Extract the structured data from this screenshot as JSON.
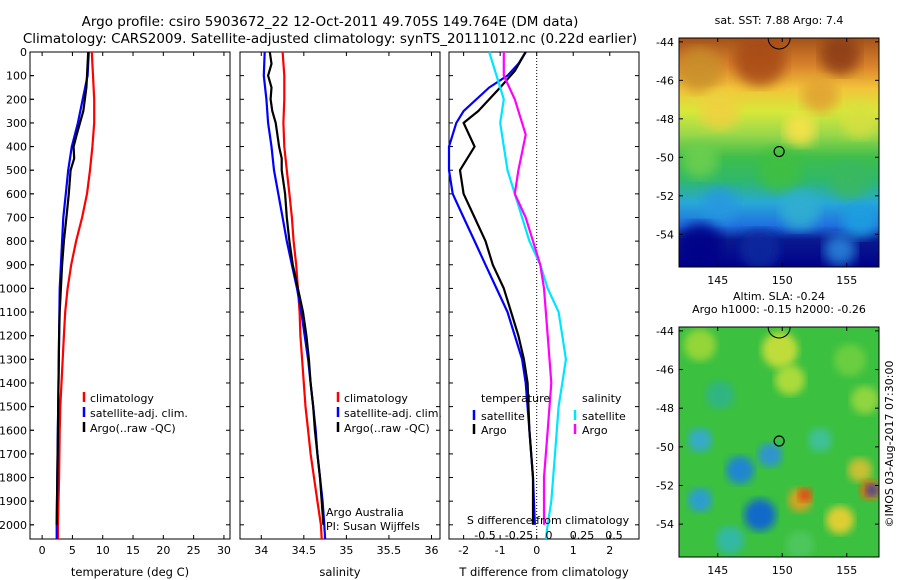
{
  "title_line1": "Argo profile: csiro 5903672_22 12-Oct-2011 49.705S 149.764E (DM data)",
  "title_line2": "Climatology: CARS2009. Satellite-adjusted climatology: synTS_20111012.nc (0.22d earlier)",
  "watermark": "©IMOS 03-Aug-2017 07:30:00",
  "colors": {
    "clim": "#ff0000",
    "sat": "#0000ff",
    "argo": "#000000",
    "sat_sal": "#00e5ff",
    "argo_sal": "#ff00ff"
  },
  "chart_data": [
    {
      "type": "line",
      "id": "temperature",
      "xlabel": "temperature (deg C)",
      "xlim": [
        -2,
        31
      ],
      "ylim": [
        0,
        2060
      ],
      "y_inverted": true,
      "xticks": [
        0,
        5,
        10,
        15,
        20,
        25,
        30
      ],
      "yticks": [
        0,
        100,
        200,
        300,
        400,
        500,
        600,
        700,
        800,
        900,
        1000,
        1100,
        1200,
        1300,
        1400,
        1500,
        1600,
        1700,
        1800,
        1900,
        2000
      ],
      "legend": [
        "climatology",
        "satellite-adj. clim.",
        "Argo(..raw -QC)"
      ],
      "series": [
        {
          "name": "climatology",
          "color": "#ff0000",
          "points": [
            [
              8.2,
              0
            ],
            [
              8.4,
              100
            ],
            [
              8.6,
              200
            ],
            [
              8.6,
              300
            ],
            [
              8.3,
              400
            ],
            [
              7.9,
              500
            ],
            [
              7.4,
              600
            ],
            [
              6.6,
              700
            ],
            [
              5.6,
              800
            ],
            [
              4.8,
              900
            ],
            [
              4.2,
              1000
            ],
            [
              3.8,
              1100
            ],
            [
              3.6,
              1200
            ],
            [
              3.4,
              1300
            ],
            [
              3.2,
              1400
            ],
            [
              3.0,
              1500
            ],
            [
              2.9,
              1600
            ],
            [
              2.8,
              1800
            ],
            [
              2.6,
              2000
            ],
            [
              2.6,
              2060
            ]
          ]
        },
        {
          "name": "satellite-adj. clim.",
          "color": "#0000ff",
          "points": [
            [
              7.7,
              0
            ],
            [
              7.5,
              100
            ],
            [
              6.7,
              200
            ],
            [
              5.9,
              300
            ],
            [
              4.9,
              400
            ],
            [
              4.3,
              500
            ],
            [
              3.9,
              600
            ],
            [
              3.5,
              700
            ],
            [
              3.3,
              800
            ],
            [
              3.1,
              900
            ],
            [
              2.9,
              1000
            ],
            [
              2.8,
              1200
            ],
            [
              2.7,
              1400
            ],
            [
              2.6,
              1600
            ],
            [
              2.5,
              1800
            ],
            [
              2.4,
              2000
            ],
            [
              2.4,
              2060
            ]
          ]
        },
        {
          "name": "Argo(..raw -QC)",
          "color": "#000000",
          "points": [
            [
              7.6,
              0
            ],
            [
              7.5,
              50
            ],
            [
              7.3,
              150
            ],
            [
              6.8,
              250
            ],
            [
              5.7,
              350
            ],
            [
              5.2,
              400
            ],
            [
              5.3,
              450
            ],
            [
              4.7,
              500
            ],
            [
              4.4,
              600
            ],
            [
              4.0,
              700
            ],
            [
              3.6,
              800
            ],
            [
              3.3,
              900
            ],
            [
              3.1,
              1000
            ],
            [
              2.9,
              1100
            ],
            [
              2.8,
              1200
            ],
            [
              2.7,
              1400
            ],
            [
              2.6,
              1600
            ],
            [
              2.5,
              1800
            ],
            [
              2.4,
              2000
            ]
          ]
        }
      ]
    },
    {
      "type": "line",
      "id": "salinity",
      "xlabel": "salinity",
      "xlim": [
        33.75,
        36.1
      ],
      "ylim": [
        0,
        2060
      ],
      "y_inverted": true,
      "xticks": [
        34,
        34.5,
        35,
        35.5,
        36
      ],
      "legend": [
        "climatology",
        "satellite-adj. clim.",
        "Argo(..raw -QC)"
      ],
      "annotation": [
        "Argo Australia",
        "PI: Susan Wijffels"
      ],
      "series": [
        {
          "name": "climatology",
          "color": "#ff0000",
          "points": [
            [
              34.25,
              0
            ],
            [
              34.27,
              100
            ],
            [
              34.27,
              200
            ],
            [
              34.26,
              300
            ],
            [
              34.27,
              400
            ],
            [
              34.3,
              500
            ],
            [
              34.33,
              600
            ],
            [
              34.36,
              700
            ],
            [
              34.38,
              800
            ],
            [
              34.41,
              900
            ],
            [
              34.43,
              1000
            ],
            [
              34.45,
              1100
            ],
            [
              34.46,
              1200
            ],
            [
              34.48,
              1300
            ],
            [
              34.5,
              1400
            ],
            [
              34.52,
              1500
            ],
            [
              34.55,
              1600
            ],
            [
              34.58,
              1700
            ],
            [
              34.62,
              1800
            ],
            [
              34.66,
              1900
            ],
            [
              34.7,
              2000
            ],
            [
              34.71,
              2060
            ]
          ]
        },
        {
          "name": "satellite-adj. clim.",
          "color": "#0000ff",
          "points": [
            [
              34.04,
              0
            ],
            [
              34.03,
              100
            ],
            [
              34.06,
              200
            ],
            [
              34.08,
              300
            ],
            [
              34.12,
              400
            ],
            [
              34.15,
              500
            ],
            [
              34.2,
              600
            ],
            [
              34.25,
              700
            ],
            [
              34.3,
              800
            ],
            [
              34.36,
              900
            ],
            [
              34.42,
              1000
            ],
            [
              34.47,
              1100
            ],
            [
              34.51,
              1200
            ],
            [
              34.55,
              1300
            ],
            [
              34.58,
              1400
            ],
            [
              34.61,
              1500
            ],
            [
              34.64,
              1600
            ],
            [
              34.66,
              1700
            ],
            [
              34.69,
              1800
            ],
            [
              34.72,
              1900
            ],
            [
              34.74,
              2000
            ],
            [
              34.75,
              2060
            ]
          ]
        },
        {
          "name": "Argo(..raw -QC)",
          "color": "#000000",
          "points": [
            [
              34.1,
              0
            ],
            [
              34.12,
              50
            ],
            [
              34.08,
              100
            ],
            [
              34.12,
              150
            ],
            [
              34.11,
              200
            ],
            [
              34.13,
              250
            ],
            [
              34.17,
              300
            ],
            [
              34.19,
              350
            ],
            [
              34.21,
              400
            ],
            [
              34.24,
              450
            ],
            [
              34.24,
              500
            ],
            [
              34.28,
              600
            ],
            [
              34.3,
              700
            ],
            [
              34.33,
              800
            ],
            [
              34.37,
              900
            ],
            [
              34.43,
              1000
            ],
            [
              34.49,
              1100
            ],
            [
              34.53,
              1200
            ],
            [
              34.56,
              1300
            ],
            [
              34.58,
              1400
            ],
            [
              34.61,
              1500
            ],
            [
              34.63,
              1600
            ],
            [
              34.66,
              1700
            ],
            [
              34.69,
              1800
            ],
            [
              34.71,
              1900
            ],
            [
              34.73,
              2000
            ]
          ]
        }
      ]
    },
    {
      "type": "line",
      "id": "difference",
      "xlabel": "T difference from climatology",
      "top_xlabel": "S difference from climatology",
      "xlim": [
        -2.4,
        2.8
      ],
      "ylim": [
        0,
        2060
      ],
      "y_inverted": true,
      "xticks": [
        -2,
        -1,
        0,
        1,
        2
      ],
      "top_ticks": [
        "-0.5",
        "-0.25",
        "0",
        "0.25",
        "0.5"
      ],
      "zero_line": 0,
      "legend_temperature": {
        "title": "temperature",
        "items": [
          "satellite",
          "Argo"
        ]
      },
      "legend_salinity": {
        "title": "salinity",
        "items": [
          "satellite",
          "Argo"
        ]
      },
      "series": [
        {
          "name": "temperature satellite",
          "color": "#0000ff",
          "points": [
            [
              -0.3,
              0
            ],
            [
              -0.5,
              50
            ],
            [
              -0.8,
              100
            ],
            [
              -1.3,
              150
            ],
            [
              -2.0,
              250
            ],
            [
              -2.2,
              300
            ],
            [
              -2.4,
              400
            ],
            [
              -2.4,
              500
            ],
            [
              -2.3,
              600
            ],
            [
              -2.0,
              700
            ],
            [
              -1.7,
              800
            ],
            [
              -1.4,
              900
            ],
            [
              -1.1,
              1000
            ],
            [
              -0.8,
              1100
            ],
            [
              -0.6,
              1200
            ],
            [
              -0.4,
              1300
            ],
            [
              -0.3,
              1400
            ],
            [
              -0.2,
              1600
            ],
            [
              -0.1,
              1800
            ],
            [
              -0.05,
              2000
            ]
          ]
        },
        {
          "name": "temperature Argo",
          "color": "#000000",
          "points": [
            [
              -0.3,
              0
            ],
            [
              -0.6,
              80
            ],
            [
              -1.0,
              150
            ],
            [
              -1.6,
              250
            ],
            [
              -2.0,
              300
            ],
            [
              -1.7,
              400
            ],
            [
              -2.1,
              500
            ],
            [
              -2.0,
              600
            ],
            [
              -1.7,
              700
            ],
            [
              -1.4,
              800
            ],
            [
              -1.2,
              900
            ],
            [
              -0.9,
              1000
            ],
            [
              -0.7,
              1100
            ],
            [
              -0.5,
              1200
            ],
            [
              -0.35,
              1300
            ],
            [
              -0.25,
              1400
            ],
            [
              -0.2,
              1600
            ],
            [
              -0.1,
              1800
            ],
            [
              -0.1,
              2000
            ]
          ]
        },
        {
          "name": "salinity satellite",
          "color": "#00e5ff",
          "points": [
            [
              -1.3,
              0
            ],
            [
              -1.1,
              100
            ],
            [
              -0.9,
              200
            ],
            [
              -1.0,
              300
            ],
            [
              -0.9,
              400
            ],
            [
              -0.8,
              500
            ],
            [
              -0.6,
              600
            ],
            [
              -0.4,
              700
            ],
            [
              -0.2,
              800
            ],
            [
              0.1,
              900
            ],
            [
              0.3,
              1000
            ],
            [
              0.6,
              1100
            ],
            [
              0.7,
              1200
            ],
            [
              0.8,
              1300
            ],
            [
              0.7,
              1400
            ],
            [
              0.6,
              1500
            ],
            [
              0.5,
              1700
            ],
            [
              0.4,
              1900
            ],
            [
              0.3,
              2000
            ],
            [
              0.25,
              2060
            ]
          ]
        },
        {
          "name": "salinity Argo",
          "color": "#ff00ff",
          "points": [
            [
              -0.9,
              0
            ],
            [
              -0.9,
              100
            ],
            [
              -0.6,
              200
            ],
            [
              -0.4,
              300
            ],
            [
              -0.3,
              350
            ],
            [
              -0.5,
              500
            ],
            [
              -0.6,
              600
            ],
            [
              -0.3,
              700
            ],
            [
              -0.1,
              800
            ],
            [
              0.1,
              900
            ],
            [
              0.2,
              1000
            ],
            [
              0.3,
              1200
            ],
            [
              0.4,
              1400
            ],
            [
              0.3,
              1600
            ],
            [
              0.2,
              1800
            ],
            [
              0.2,
              2000
            ]
          ]
        }
      ]
    }
  ],
  "maps": [
    {
      "id": "sst_map",
      "title_lines": [
        "sat. SST: 7.88 Argo: 7.4"
      ],
      "xticks": [
        "145",
        "150",
        "155"
      ],
      "yticks": [
        "-44",
        "-46",
        "-48",
        "-50",
        "-52",
        "-54"
      ],
      "lon_range": [
        142,
        157.5
      ],
      "lat_range": [
        -55.7,
        -43.8
      ],
      "marker": {
        "lon": 149.76,
        "lat": -49.7
      }
    },
    {
      "id": "sla_map",
      "title_lines": [
        "Altim. SLA: -0.24",
        "Argo h1000: -0.15 h2000: -0.26"
      ],
      "xticks": [
        "145",
        "150",
        "155"
      ],
      "yticks": [
        "-44",
        "-46",
        "-48",
        "-50",
        "-52",
        "-54"
      ],
      "lon_range": [
        142,
        157.5
      ],
      "lat_range": [
        -55.7,
        -43.8
      ],
      "marker": {
        "lon": 149.76,
        "lat": -49.7
      }
    }
  ]
}
